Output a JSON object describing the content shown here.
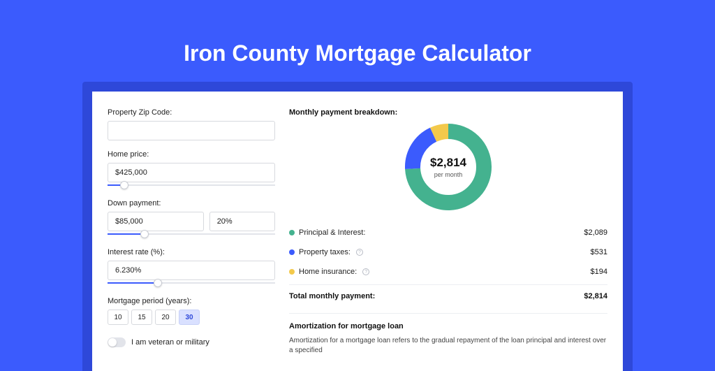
{
  "title": "Iron County Mortgage Calculator",
  "colors": {
    "page_bg": "#3b5bfd",
    "frame_bg": "#2e48d9",
    "panel_bg": "#ffffff",
    "accent": "#3b5bfd"
  },
  "form": {
    "zip": {
      "label": "Property Zip Code:",
      "value": ""
    },
    "home_price": {
      "label": "Home price:",
      "value": "$425,000",
      "slider_pct": 10
    },
    "down_payment": {
      "label": "Down payment:",
      "value": "$85,000",
      "pct_value": "20%",
      "slider_pct": 22
    },
    "interest": {
      "label": "Interest rate (%):",
      "value": "6.230%",
      "slider_pct": 30
    },
    "period": {
      "label": "Mortgage period (years):",
      "options": [
        "10",
        "15",
        "20",
        "30"
      ],
      "selected": "30"
    },
    "veteran": {
      "label": "I am veteran or military",
      "on": false
    }
  },
  "breakdown": {
    "heading": "Monthly payment breakdown:",
    "donut": {
      "center_amount": "$2,814",
      "center_sub": "per month",
      "size": 124,
      "thickness": 22,
      "slices": [
        {
          "key": "principal_interest",
          "value": 2089,
          "color": "#44b28f"
        },
        {
          "key": "property_taxes",
          "value": 531,
          "color": "#3b5bfd"
        },
        {
          "key": "home_insurance",
          "value": 194,
          "color": "#f3c94b"
        }
      ]
    },
    "legend": [
      {
        "label": "Principal & Interest:",
        "value": "$2,089",
        "color": "#44b28f",
        "info": false
      },
      {
        "label": "Property taxes:",
        "value": "$531",
        "color": "#3b5bfd",
        "info": true
      },
      {
        "label": "Home insurance:",
        "value": "$194",
        "color": "#f3c94b",
        "info": true
      }
    ],
    "total": {
      "label": "Total monthly payment:",
      "value": "$2,814"
    }
  },
  "amortization": {
    "title": "Amortization for mortgage loan",
    "text": "Amortization for a mortgage loan refers to the gradual repayment of the loan principal and interest over a specified"
  }
}
